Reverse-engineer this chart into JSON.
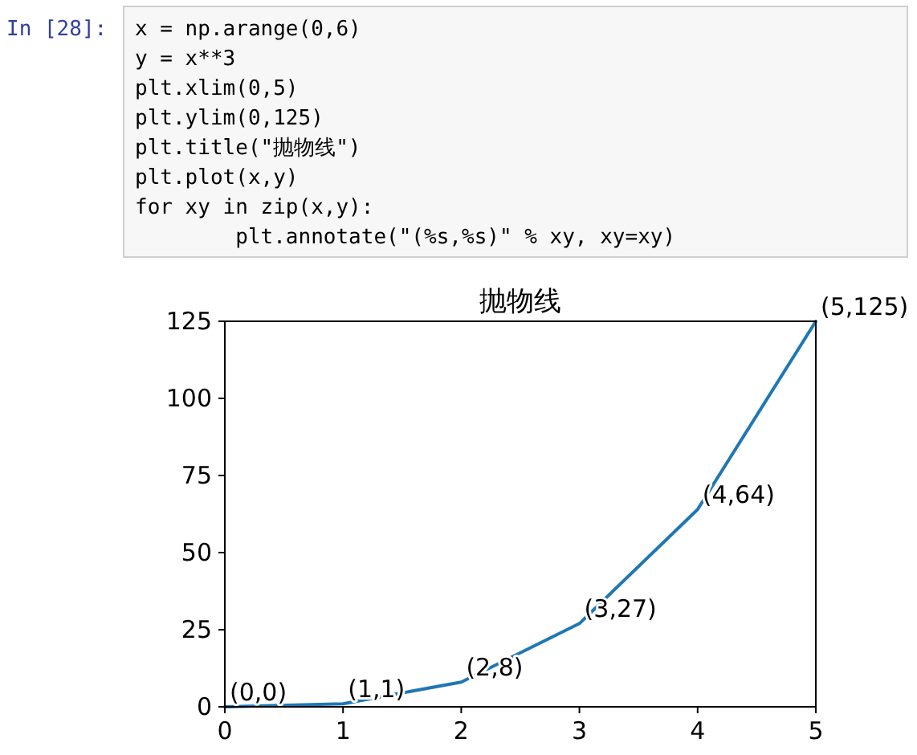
{
  "chart_data": {
    "type": "line",
    "title": "抛物线",
    "x": [
      0,
      1,
      2,
      3,
      4,
      5
    ],
    "series": [
      {
        "color": "#1f77b4",
        "values": [
          0,
          1,
          8,
          27,
          64,
          125
        ]
      }
    ],
    "xlim": [
      0,
      5
    ],
    "ylim": [
      0,
      125
    ],
    "xticks": [
      0,
      1,
      2,
      3,
      4,
      5
    ],
    "yticks": [
      0,
      25,
      50,
      75,
      100,
      125
    ],
    "annotations": [
      {
        "text": "(0,0)",
        "x": 0,
        "y": 0
      },
      {
        "text": "(1,1)",
        "x": 1,
        "y": 1
      },
      {
        "text": "(2,8)",
        "x": 2,
        "y": 8
      },
      {
        "text": "(3,27)",
        "x": 3,
        "y": 27
      },
      {
        "text": "(4,64)",
        "x": 4,
        "y": 64
      },
      {
        "text": "(5,125)",
        "x": 5,
        "y": 125
      },
      "In  [28]:",
      "x = np.arange(0,6)",
      "y = x**3",
      "plt.xlim(0,5)",
      "plt.ylim(0,125)",
      "plt.title(\"抛物线\")",
      "plt.plot(x,y)",
      "for xy in zip(x,y):",
      "        plt.annotate(\"(%s,%s)\" % xy, xy=xy)"
    ]
  }
}
